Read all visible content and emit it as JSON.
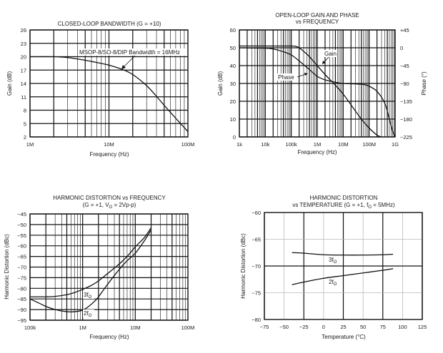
{
  "chart_data": [
    {
      "id": "closed-loop",
      "type": "line",
      "title": "CLOSED-LOOP BANDWIDTH (G = +10)",
      "xlabel": "Frequency (Hz)",
      "ylabel": "Gain (dB)",
      "xscale": "log",
      "xlim": [
        1000000,
        100000000
      ],
      "ylim": [
        2,
        26
      ],
      "xticks": [
        1000000,
        10000000,
        100000000
      ],
      "xtick_labels": [
        "1M",
        "10M",
        "100M"
      ],
      "yticks": [
        2,
        5,
        8,
        11,
        14,
        17,
        20,
        23,
        26
      ],
      "ytick_labels": [
        "2",
        "5",
        "8",
        "11",
        "14",
        "17",
        "20",
        "23",
        "26"
      ],
      "grid": true,
      "annotation": "MSOP-8/SO-8/DIP Bandwidth = 16MHz",
      "series": [
        {
          "name": "Gain",
          "x": [
            1000000,
            2000000,
            3000000,
            5000000,
            7000000,
            10000000,
            15000000,
            20000000,
            30000000,
            40000000,
            50000000,
            70000000,
            100000000
          ],
          "y": [
            20,
            20,
            19.8,
            19.2,
            18.7,
            18.1,
            17.1,
            16,
            13.5,
            11.1,
            9.1,
            6.2,
            3.2
          ]
        }
      ]
    },
    {
      "id": "open-loop",
      "type": "line",
      "title": "OPEN-LOOP GAIN AND PHASE",
      "subtitle": "vs FREQUENCY",
      "xlabel": "Frequency (Hz)",
      "ylabel": "Gain (dB)",
      "y2label": "Phase (°)",
      "xscale": "log",
      "xlim": [
        1000,
        1000000000
      ],
      "ylim": [
        0,
        60
      ],
      "y2lim": [
        -225,
        45
      ],
      "xticks": [
        1000,
        10000,
        100000,
        1000000,
        10000000,
        100000000,
        1000000000
      ],
      "xtick_labels": [
        "1k",
        "10k",
        "100k",
        "1M",
        "10M",
        "100M",
        "1G"
      ],
      "yticks": [
        0,
        10,
        20,
        30,
        40,
        50,
        60
      ],
      "ytick_labels": [
        "0",
        "10",
        "20",
        "30",
        "40",
        "50",
        "60"
      ],
      "y2ticks": [
        -225,
        -180,
        -135,
        -90,
        -45,
        0,
        45
      ],
      "y2tick_labels": [
        "−225",
        "−180",
        "−135",
        "−90",
        "−45",
        "0",
        "+45"
      ],
      "grid": true,
      "series": [
        {
          "name": "Gain",
          "label": "Gain",
          "axis": "left",
          "x": [
            1000,
            10000,
            100000,
            150000,
            200000,
            300000,
            500000,
            1000000,
            2000000,
            5000000,
            10000000,
            20000000,
            50000000,
            100000000,
            200000000,
            300000000
          ],
          "y": [
            51,
            51,
            51,
            50.8,
            50,
            48,
            45,
            40,
            35,
            29,
            24,
            18,
            10,
            5,
            1,
            0
          ]
        },
        {
          "name": "Phase",
          "label": "Phase",
          "axis": "right",
          "x": [
            1000,
            10000,
            20000,
            50000,
            100000,
            200000,
            500000,
            1000000,
            2000000,
            5000000,
            10000000,
            50000000,
            100000000,
            200000000,
            400000000,
            600000000,
            800000000,
            1000000000
          ],
          "y": [
            0,
            -1,
            -3,
            -10,
            -18,
            -33,
            -55,
            -72,
            -81,
            -87,
            -90,
            -92,
            -97,
            -110,
            -140,
            -180,
            -210,
            -225
          ]
        }
      ]
    },
    {
      "id": "hd-vs-frequency",
      "type": "line",
      "title": "HARMONIC DISTORTION vs FREQUENCY",
      "subtitle": "(G = +1, V",
      "subtitle_sub": "O",
      "subtitle_end": " = 2Vp-p)",
      "xlabel": "Frequency (Hz)",
      "ylabel": "Harmonic Distortion (dBc)",
      "xscale": "log",
      "xlim": [
        100000,
        100000000
      ],
      "ylim": [
        -95,
        -45
      ],
      "xticks": [
        100000,
        1000000,
        10000000,
        100000000
      ],
      "xtick_labels": [
        "100k",
        "1M",
        "10M",
        "100M"
      ],
      "yticks": [
        -95,
        -90,
        -85,
        -80,
        -75,
        -70,
        -65,
        -60,
        -55,
        -50,
        -45
      ],
      "ytick_labels": [
        "−95",
        "−90",
        "−85",
        "−80",
        "−75",
        "−70",
        "−65",
        "−60",
        "−55",
        "−50",
        "−45"
      ],
      "grid": true,
      "series": [
        {
          "name": "3fO",
          "label": "3f",
          "label_sub": "O",
          "x": [
            100000,
            200000,
            300000,
            500000,
            700000,
            1000000,
            1500000,
            2000000,
            3000000,
            5000000,
            7000000,
            10000000,
            15000000,
            20000000
          ],
          "y": [
            -84,
            -84,
            -83.8,
            -83,
            -82,
            -80.5,
            -78.5,
            -76.5,
            -73,
            -68.5,
            -65,
            -60.5,
            -56,
            -51.5
          ]
        },
        {
          "name": "2fO",
          "label": "2f",
          "label_sub": "O",
          "x": [
            100000,
            150000,
            200000,
            300000,
            500000,
            700000,
            1000000,
            1300000,
            1700000,
            2000000,
            3000000,
            5000000,
            7000000,
            10000000,
            15000000,
            20000000
          ],
          "y": [
            -85,
            -87,
            -88.5,
            -90,
            -91,
            -91,
            -90.3,
            -88.5,
            -86,
            -84,
            -78,
            -71,
            -67,
            -63.5,
            -57.5,
            -52.5
          ]
        }
      ]
    },
    {
      "id": "hd-vs-temperature",
      "type": "line",
      "title": "HARMONIC DISTORTION",
      "subtitle": "vs TEMPERATURE (G = +1, f",
      "subtitle_sub": "O",
      "subtitle_end": " = 5MHz)",
      "xlabel": "Temperature (°C)",
      "ylabel": "Harmonic Distortion (dBc)",
      "xlim": [
        -75,
        125
      ],
      "ylim": [
        -80,
        -60
      ],
      "xticks": [
        -75,
        -50,
        -25,
        0,
        25,
        50,
        75,
        100,
        125
      ],
      "xtick_labels": [
        "−75",
        "−50",
        "−25",
        "0",
        "25",
        "50",
        "75",
        "100",
        "125"
      ],
      "yticks": [
        -80,
        -75,
        -70,
        -65,
        -60
      ],
      "ytick_labels": [
        "−80",
        "−75",
        "−70",
        "−65",
        "−60"
      ],
      "grid": true,
      "series": [
        {
          "name": "3fO",
          "label": "3f",
          "label_sub": "O",
          "x": [
            -40,
            -25,
            0,
            25,
            50,
            75,
            88
          ],
          "y": [
            -67.5,
            -67.6,
            -67.9,
            -67.95,
            -67.95,
            -67.9,
            -67.8
          ]
        },
        {
          "name": "2fO",
          "label": "2f",
          "label_sub": "O",
          "x": [
            -40,
            -25,
            0,
            25,
            50,
            75,
            88
          ],
          "y": [
            -73.5,
            -73.0,
            -72.3,
            -71.8,
            -71.3,
            -70.8,
            -70.5
          ]
        }
      ]
    }
  ]
}
